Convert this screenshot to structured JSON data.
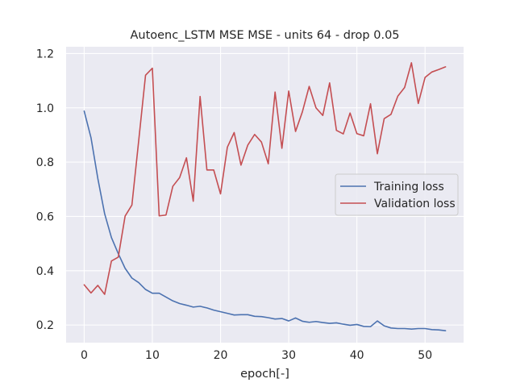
{
  "chart_data": {
    "type": "line",
    "title": "Autoenc_LSTM MSE MSE - units 64 - drop 0.05",
    "xlabel": "epoch[-]",
    "ylabel": "",
    "xlim": [
      -2.65,
      55.65
    ],
    "ylim": [
      0.135,
      1.225
    ],
    "xticks": [
      0,
      10,
      20,
      30,
      40,
      50
    ],
    "yticks": [
      0.2,
      0.4,
      0.6,
      0.8,
      1.0,
      1.2
    ],
    "ytick_labels": [
      "0.2",
      "0.4",
      "0.6",
      "0.8",
      "1.0",
      "1.2"
    ],
    "grid": true,
    "legend_position": "center-right",
    "background": "#eaeaf2",
    "series": [
      {
        "name": "Training loss",
        "color": "#4c72b0",
        "values": [
          0.988,
          0.89,
          0.74,
          0.61,
          0.522,
          0.463,
          0.409,
          0.373,
          0.356,
          0.331,
          0.317,
          0.317,
          0.303,
          0.289,
          0.279,
          0.273,
          0.266,
          0.269,
          0.263,
          0.255,
          0.249,
          0.243,
          0.237,
          0.238,
          0.238,
          0.232,
          0.231,
          0.227,
          0.222,
          0.224,
          0.215,
          0.226,
          0.214,
          0.21,
          0.213,
          0.209,
          0.206,
          0.208,
          0.203,
          0.199,
          0.202,
          0.195,
          0.194,
          0.215,
          0.197,
          0.189,
          0.187,
          0.187,
          0.185,
          0.187,
          0.187,
          0.183,
          0.182,
          0.179
        ]
      },
      {
        "name": "Validation loss",
        "color": "#c44e52",
        "values": [
          0.348,
          0.318,
          0.346,
          0.313,
          0.436,
          0.45,
          0.601,
          0.642,
          0.88,
          1.12,
          1.146,
          0.602,
          0.605,
          0.711,
          0.743,
          0.816,
          0.656,
          1.042,
          0.771,
          0.771,
          0.683,
          0.855,
          0.909,
          0.789,
          0.863,
          0.902,
          0.874,
          0.794,
          1.058,
          0.851,
          1.062,
          0.913,
          0.985,
          1.079,
          1.0,
          0.972,
          1.092,
          0.917,
          0.904,
          0.981,
          0.905,
          0.897,
          1.015,
          0.831,
          0.96,
          0.976,
          1.043,
          1.075,
          1.166,
          1.016,
          1.112,
          1.132,
          1.141,
          1.151
        ]
      }
    ]
  }
}
